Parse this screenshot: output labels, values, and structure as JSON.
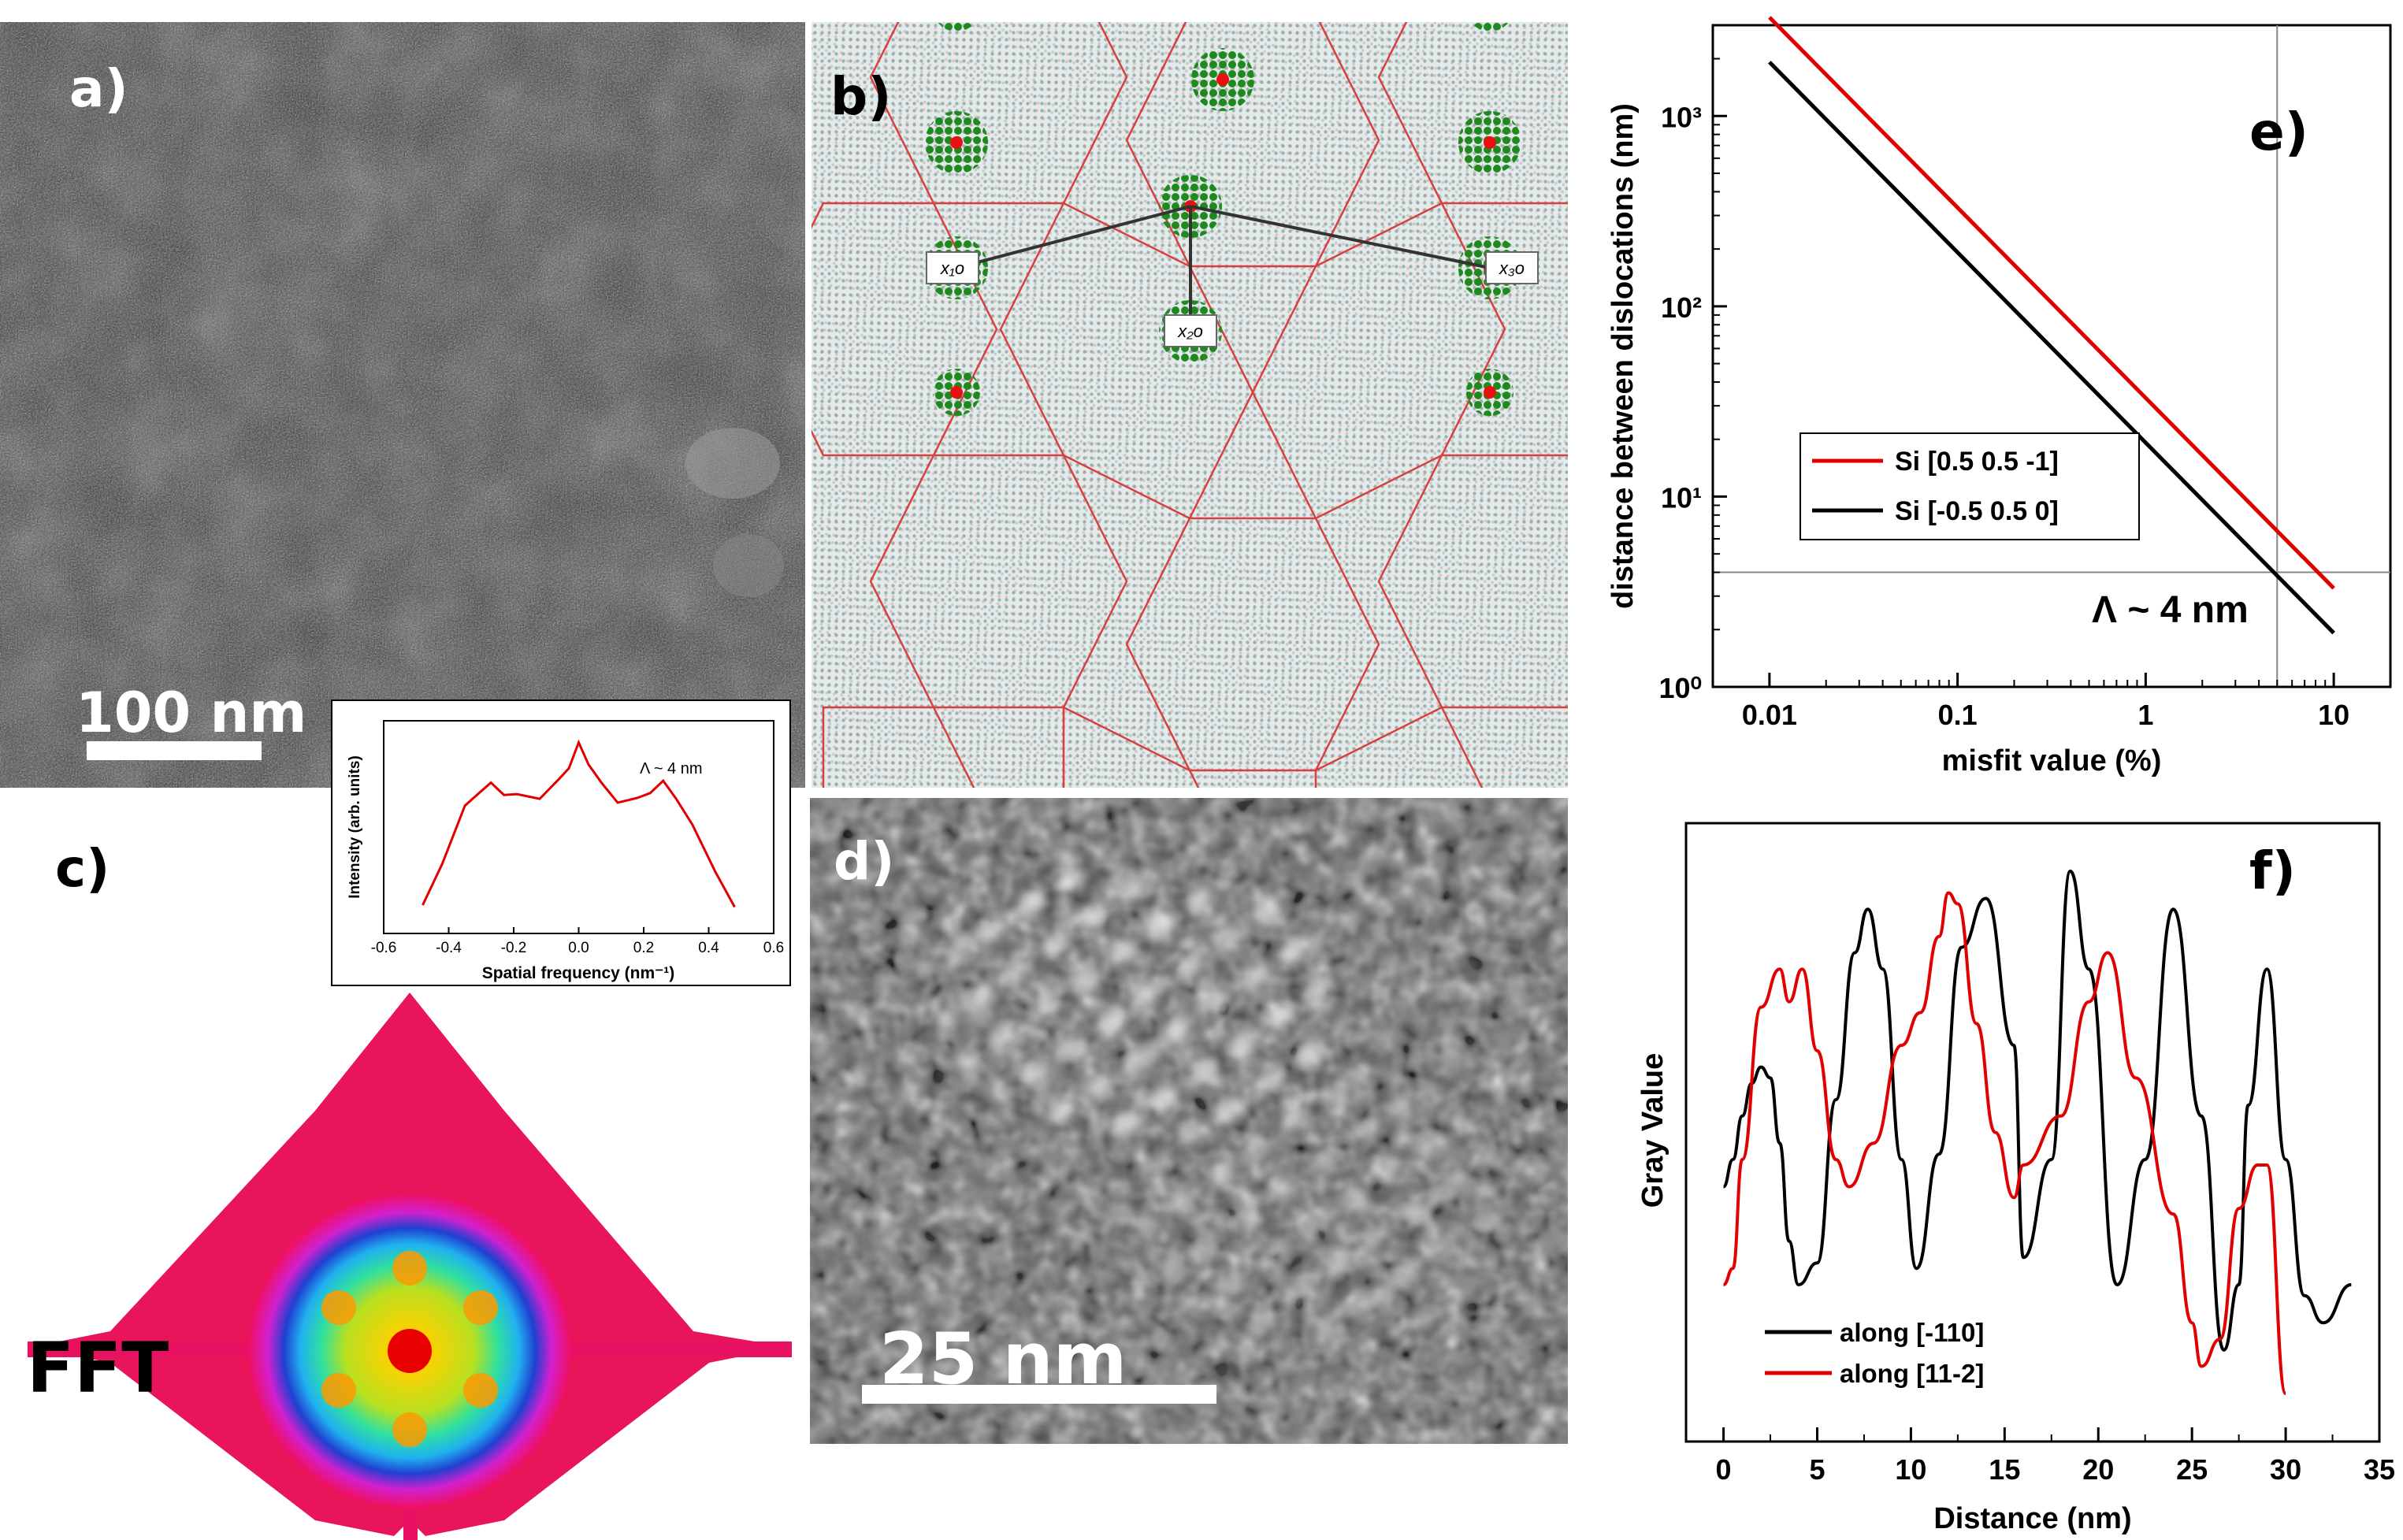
{
  "panels": {
    "a": {
      "label": "a)",
      "scalebar": "100 nm"
    },
    "b": {
      "label": "b)",
      "markers": [
        "x₁o",
        "x₂o",
        "x₃o"
      ]
    },
    "c": {
      "label": "c)",
      "caption": "FFT",
      "inset": {
        "xlabel": "Spatial frequency (nm⁻¹)",
        "ylabel": "Intensity (arb. units)",
        "annotation": "Λ ~ 4 nm",
        "xticks": [
          "-0.6",
          "-0.4",
          "-0.2",
          "0.0",
          "0.2",
          "0.4",
          "0.6"
        ]
      }
    },
    "d": {
      "label": "d)",
      "scalebar": "25 nm"
    },
    "e": {
      "label": "e)",
      "annotation": "Λ ~ 4 nm"
    },
    "f": {
      "label": "f)"
    }
  },
  "chart_data": [
    {
      "id": "e",
      "type": "line",
      "xscale": "log",
      "yscale": "log",
      "xlabel": "misfit value (%)",
      "ylabel": "distance between dislocations (nm)",
      "xlim": [
        0.005,
        20
      ],
      "ylim": [
        1,
        3000
      ],
      "xticks": [
        0.01,
        0.1,
        1,
        10
      ],
      "xtick_labels": [
        "0.01",
        "0.1",
        "1",
        "10"
      ],
      "yticks": [
        1,
        10,
        100,
        1000
      ],
      "ytick_labels": [
        "10⁰",
        "10¹",
        "10²",
        "10³"
      ],
      "reference_lines": {
        "x": 5,
        "y": 4
      },
      "legend": "middle-left",
      "series": [
        {
          "name": "Si [0.5 0.5 -1]",
          "color": "#e00000",
          "x": [
            0.01,
            10
          ],
          "y": [
            3300,
            3.3
          ]
        },
        {
          "name": "Si [-0.5 0.5 0]",
          "color": "#000000",
          "x": [
            0.01,
            10
          ],
          "y": [
            1920,
            1.92
          ]
        }
      ]
    },
    {
      "id": "f",
      "type": "line",
      "xlabel": "Distance (nm)",
      "ylabel": "Gray Value",
      "xlim": [
        -2,
        35
      ],
      "ylim": [
        0,
        1
      ],
      "xticks": [
        0,
        5,
        10,
        15,
        20,
        25,
        30,
        35
      ],
      "legend": "bottom-left",
      "series": [
        {
          "name": "along [-110]",
          "color": "#000000",
          "x": [
            0,
            0.5,
            1,
            1.5,
            2,
            2.5,
            3,
            3.5,
            4,
            5,
            6,
            7,
            7.7,
            8.5,
            9.5,
            10.3,
            11.5,
            12.7,
            14,
            15.5,
            16,
            17.5,
            18.5,
            19.5,
            21,
            22.5,
            24,
            25.5,
            26.7,
            27.5,
            28,
            29,
            30,
            31,
            32,
            33.5
          ],
          "y": [
            0.4,
            0.45,
            0.53,
            0.59,
            0.62,
            0.6,
            0.48,
            0.3,
            0.22,
            0.26,
            0.56,
            0.83,
            0.91,
            0.8,
            0.45,
            0.25,
            0.46,
            0.84,
            0.93,
            0.66,
            0.27,
            0.45,
            0.98,
            0.8,
            0.22,
            0.45,
            0.91,
            0.53,
            0.1,
            0.22,
            0.55,
            0.8,
            0.45,
            0.2,
            0.15,
            0.22
          ]
        },
        {
          "name": "along [11-2]",
          "color": "#e00000",
          "x": [
            0,
            0.5,
            1,
            2,
            3,
            3.5,
            4.2,
            5,
            6,
            6.7,
            8,
            9.5,
            10.5,
            11.5,
            12,
            12.5,
            13.5,
            14.5,
            15.5,
            16,
            18,
            19.5,
            20.5,
            22,
            24,
            25,
            25.5,
            26.5,
            27.5,
            28.5,
            29,
            30
          ],
          "y": [
            0.22,
            0.25,
            0.45,
            0.73,
            0.8,
            0.74,
            0.8,
            0.65,
            0.45,
            0.4,
            0.48,
            0.66,
            0.72,
            0.86,
            0.94,
            0.92,
            0.7,
            0.5,
            0.38,
            0.44,
            0.53,
            0.74,
            0.83,
            0.6,
            0.35,
            0.15,
            0.07,
            0.12,
            0.36,
            0.44,
            0.44,
            0.02
          ]
        }
      ]
    },
    {
      "id": "c-inset",
      "type": "line",
      "xlabel": "Spatial frequency (nm⁻¹)",
      "ylabel": "Intensity (arb. units)",
      "xlim": [
        -0.6,
        0.6
      ],
      "series": [
        {
          "name": "profile",
          "color": "#e00000",
          "x": [
            -0.48,
            -0.42,
            -0.35,
            -0.3,
            -0.27,
            -0.23,
            -0.19,
            -0.12,
            -0.06,
            -0.03,
            0.0,
            0.03,
            0.07,
            0.12,
            0.18,
            0.22,
            0.26,
            0.3,
            0.35,
            0.42,
            0.48
          ],
          "y": [
            0.08,
            0.32,
            0.6,
            0.7,
            0.72,
            0.68,
            0.66,
            0.66,
            0.74,
            0.82,
            0.93,
            0.84,
            0.72,
            0.64,
            0.64,
            0.69,
            0.73,
            0.66,
            0.5,
            0.28,
            0.07
          ]
        }
      ]
    }
  ]
}
